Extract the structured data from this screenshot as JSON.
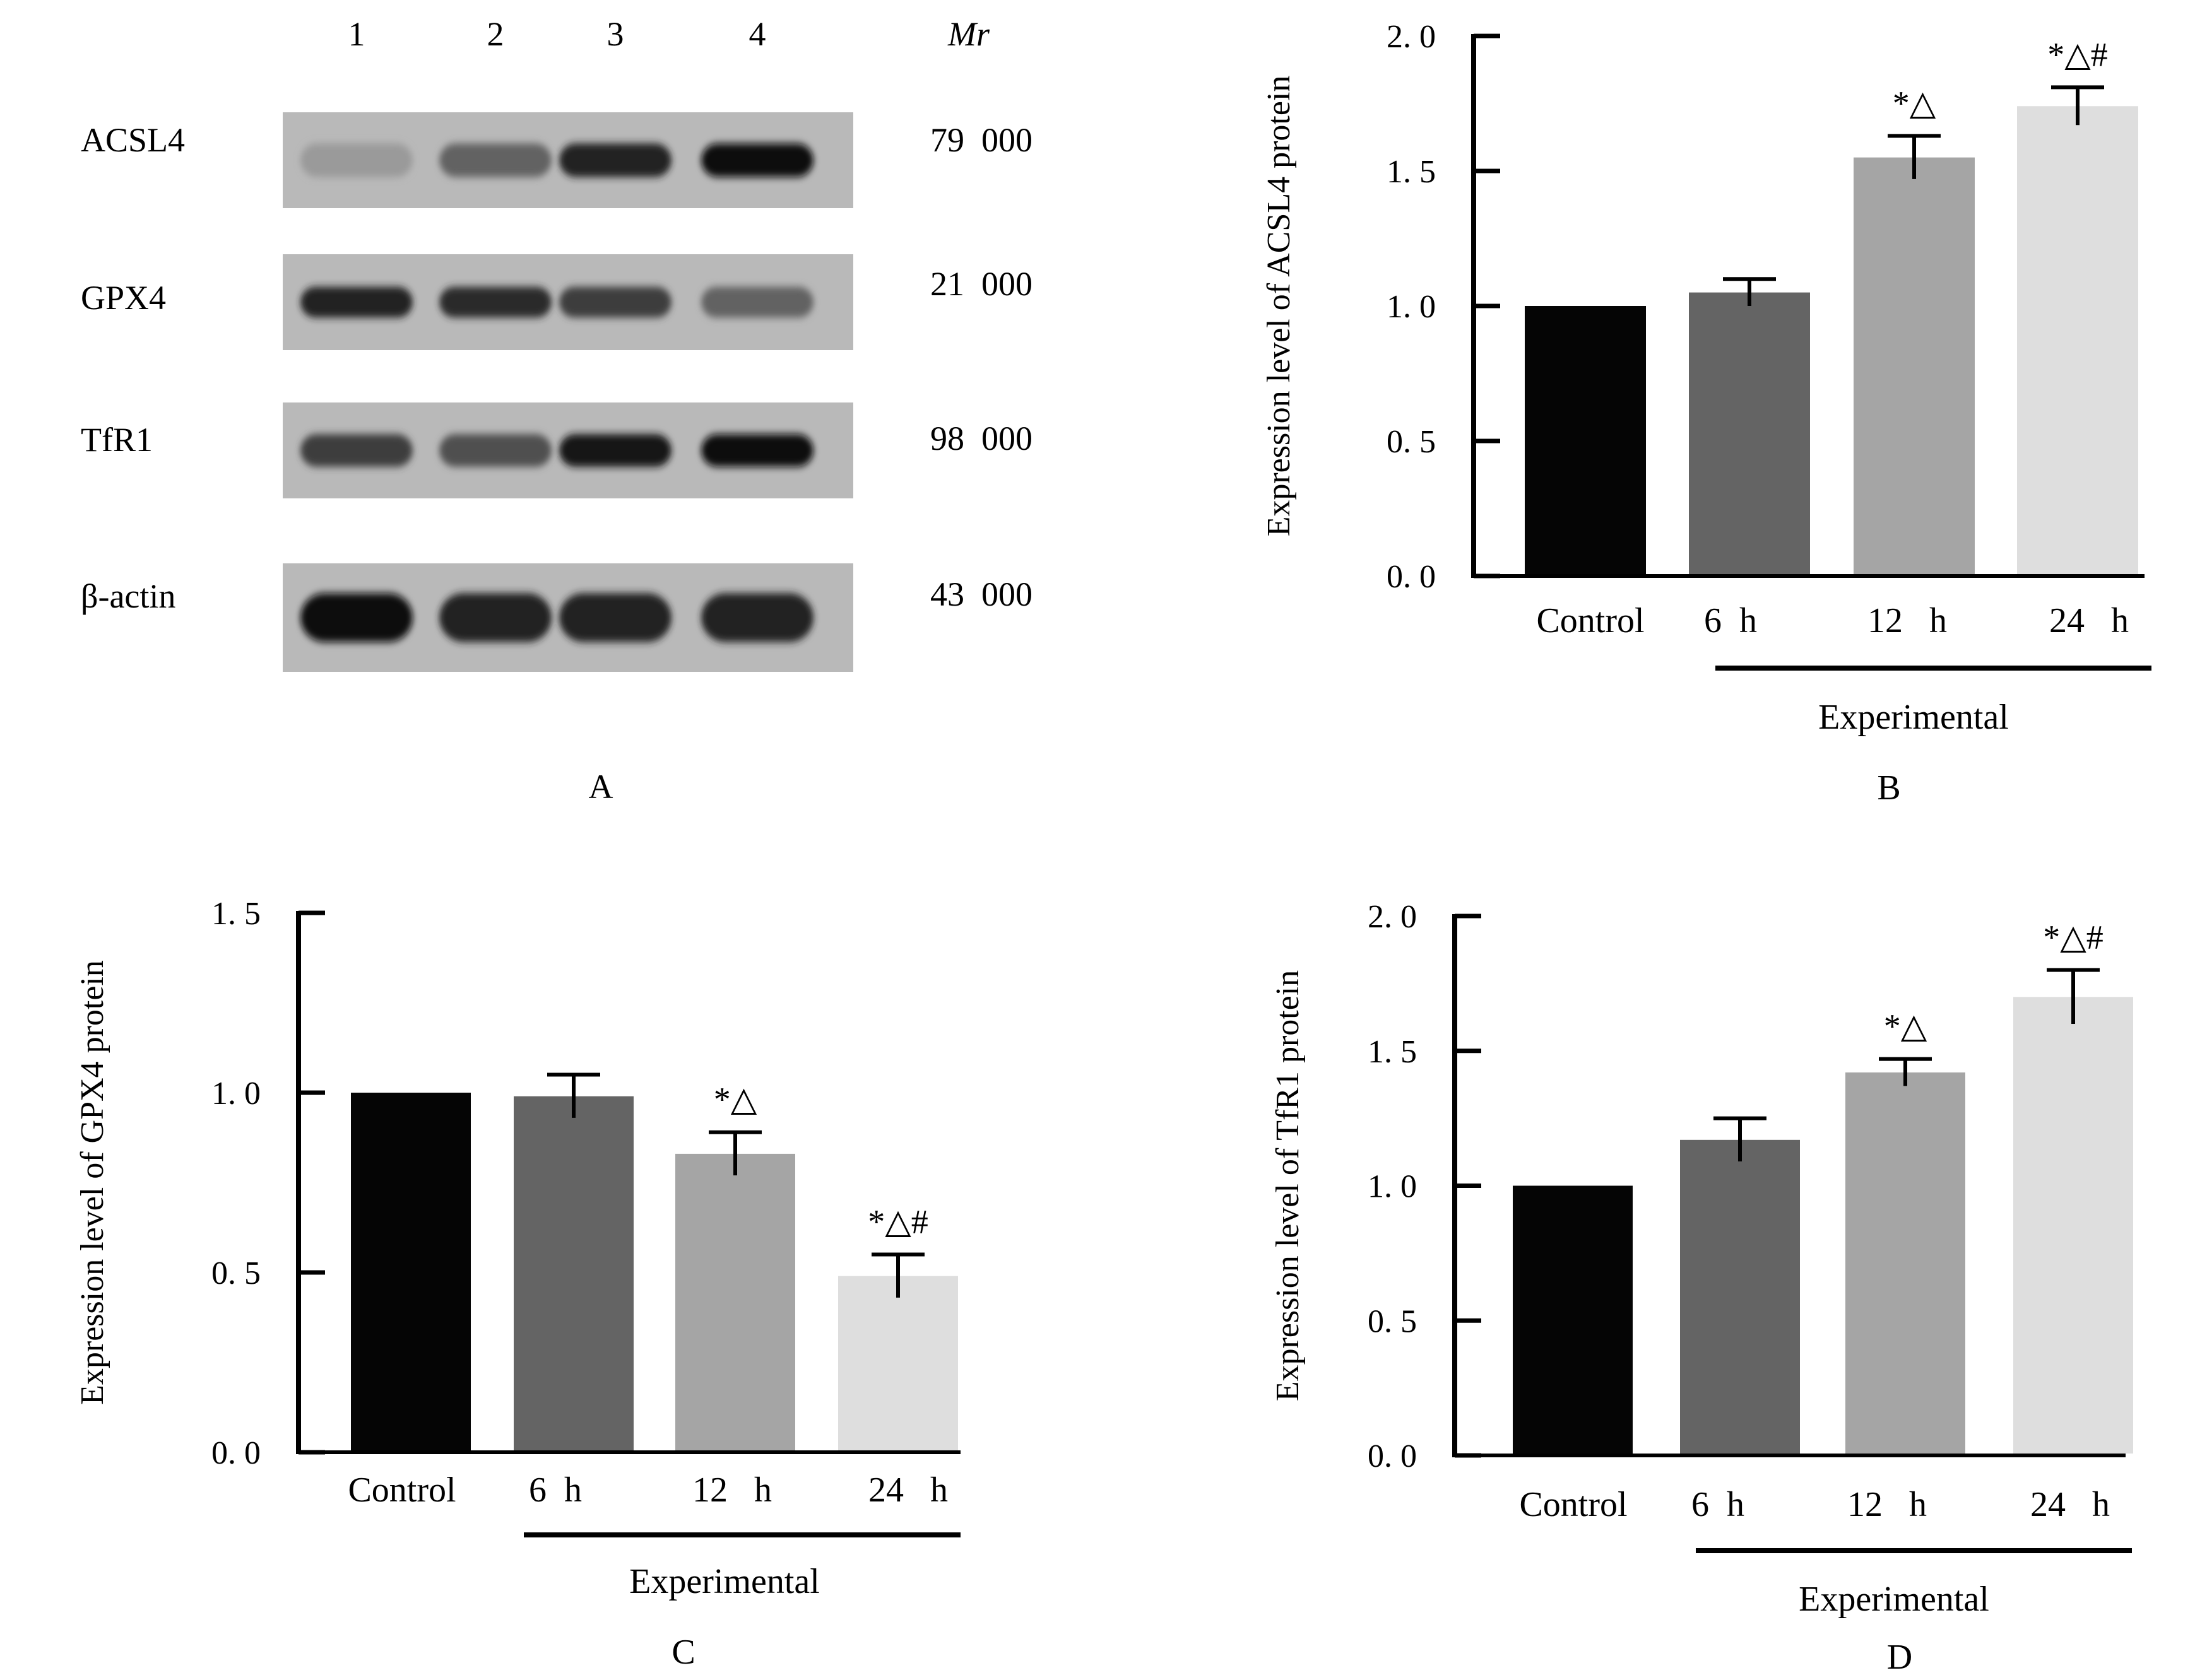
{
  "panel_a": {
    "label": "A",
    "lane_numbers": [
      "1",
      "2",
      "3",
      "4"
    ],
    "mr_header": "Mr",
    "rows": [
      {
        "protein": "ACSL4",
        "mr": "79  000",
        "intensity": [
          0.25,
          0.55,
          0.9,
          1.0
        ],
        "thickness": 0.35
      },
      {
        "protein": "GPX4",
        "mr": "21  000",
        "intensity": [
          0.9,
          0.85,
          0.75,
          0.55
        ],
        "thickness": 0.32
      },
      {
        "protein": "TfR1",
        "mr": "98  000",
        "intensity": [
          0.75,
          0.65,
          0.95,
          1.0
        ],
        "thickness": 0.34
      },
      {
        "protein": "β-actin",
        "mr": "43  000",
        "intensity": [
          1.0,
          0.9,
          0.9,
          0.9
        ],
        "thickness": 0.45
      }
    ]
  },
  "chart_data": [
    {
      "panel": "B",
      "type": "bar",
      "categories": [
        "Control",
        "6  h",
        "12   h",
        "24   h"
      ],
      "values": [
        1.0,
        1.05,
        1.55,
        1.74
      ],
      "errors": [
        0,
        0.05,
        0.08,
        0.07
      ],
      "annotations": [
        "",
        "",
        "*△",
        "*△#"
      ],
      "bar_colors": [
        "#050505",
        "#646464",
        "#a5a5a5",
        "#dedede"
      ],
      "ylabel": "Expression level of ACSL4 protein",
      "ylim": [
        0,
        2.0
      ],
      "yticks": [
        0,
        0.5,
        1.0,
        1.5,
        2.0
      ],
      "ytick_labels": [
        "0. 0",
        "0. 5",
        "1. 0",
        "1. 5",
        "2. 0"
      ],
      "group_label": "Experimental",
      "panel_label": "B"
    },
    {
      "panel": "C",
      "type": "bar",
      "categories": [
        "Control",
        "6  h",
        "12   h",
        "24   h"
      ],
      "values": [
        1.0,
        0.99,
        0.83,
        0.49
      ],
      "errors": [
        0,
        0.06,
        0.06,
        0.06
      ],
      "annotations": [
        "",
        "",
        "*△",
        "*△#"
      ],
      "bar_colors": [
        "#050505",
        "#646464",
        "#a5a5a5",
        "#dedede"
      ],
      "ylabel": "Expression level of GPX4 protein",
      "ylim": [
        0,
        1.5
      ],
      "yticks": [
        0,
        0.5,
        1.0,
        1.5
      ],
      "ytick_labels": [
        "0. 0",
        "0. 5",
        "1. 0",
        "1. 5"
      ],
      "group_label": "Experimental",
      "panel_label": "C"
    },
    {
      "panel": "D",
      "type": "bar",
      "categories": [
        "Control",
        "6  h",
        "12   h",
        "24   h"
      ],
      "values": [
        1.0,
        1.17,
        1.42,
        1.7
      ],
      "errors": [
        0,
        0.08,
        0.05,
        0.1
      ],
      "annotations": [
        "",
        "",
        "*△",
        "*△#"
      ],
      "bar_colors": [
        "#050505",
        "#646464",
        "#a5a5a5",
        "#dedede"
      ],
      "ylabel": "Expression level of TfR1 protein",
      "ylim": [
        0,
        2.0
      ],
      "yticks": [
        0,
        0.5,
        1.0,
        1.5,
        2.0
      ],
      "ytick_labels": [
        "0. 0",
        "0. 5",
        "1. 0",
        "1. 5",
        "2. 0"
      ],
      "group_label": "Experimental",
      "panel_label": "D"
    }
  ]
}
